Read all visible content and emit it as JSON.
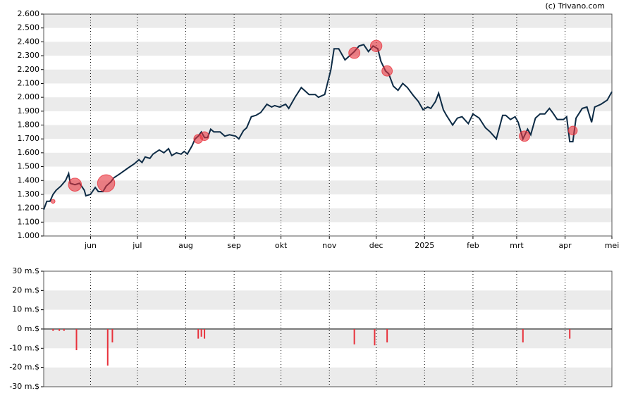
{
  "source": "(c) Trivano.com",
  "chart_data": [
    {
      "type": "line",
      "xlim": [
        1,
        365
      ],
      "xticks": [
        {
          "value": 31,
          "label": "jun"
        },
        {
          "value": 61,
          "label": "jul"
        },
        {
          "value": 92,
          "label": "aug"
        },
        {
          "value": 123,
          "label": "sep"
        },
        {
          "value": 153,
          "label": "okt"
        },
        {
          "value": 184,
          "label": "nov"
        },
        {
          "value": 214,
          "label": "dec"
        },
        {
          "value": 245,
          "label": "2025"
        },
        {
          "value": 276,
          "label": "feb"
        },
        {
          "value": 304,
          "label": "mrt"
        },
        {
          "value": 335,
          "label": "apr"
        },
        {
          "value": 365,
          "label": "mei"
        }
      ],
      "ylim": [
        1,
        2.6
      ],
      "yticks": [
        {
          "value": 1,
          "label": "1.000"
        },
        {
          "value": 1.1,
          "label": "1.100"
        },
        {
          "value": 1.2,
          "label": "1.200"
        },
        {
          "value": 1.3,
          "label": "1.300"
        },
        {
          "value": 1.4,
          "label": "1.400"
        },
        {
          "value": 1.5,
          "label": "1.500"
        },
        {
          "value": 1.6,
          "label": "1.600"
        },
        {
          "value": 1.7,
          "label": "1.700"
        },
        {
          "value": 1.8,
          "label": "1.800"
        },
        {
          "value": 1.9,
          "label": "1.900"
        },
        {
          "value": 2,
          "label": "2.000"
        },
        {
          "value": 2.1,
          "label": "2.100"
        },
        {
          "value": 2.2,
          "label": "2.200"
        },
        {
          "value": 2.3,
          "label": "2.300"
        },
        {
          "value": 2.4,
          "label": "2.400"
        },
        {
          "value": 2.5,
          "label": "2.500"
        },
        {
          "value": 2.6,
          "label": "2.600"
        }
      ],
      "grid": true,
      "series": [
        {
          "color": "#0d2b45",
          "x": [
            1,
            3,
            5,
            7,
            9,
            12,
            15,
            17,
            18,
            21,
            24,
            27,
            28,
            31,
            34,
            36,
            39,
            41,
            44,
            46,
            50,
            55,
            59,
            62,
            64,
            66,
            69,
            71,
            75,
            78,
            81,
            83,
            86,
            89,
            91,
            93,
            96,
            98,
            100,
            102,
            104,
            106,
            108,
            110,
            114,
            117,
            120,
            124,
            126,
            129,
            131,
            134,
            137,
            140,
            144,
            147,
            149,
            152,
            156,
            158,
            162,
            166,
            168,
            171,
            175,
            177,
            181,
            185,
            187,
            190,
            194,
            197,
            200,
            203,
            206,
            209,
            212,
            215,
            217,
            220,
            222,
            225,
            228,
            231,
            234,
            238,
            241,
            244,
            247,
            249,
            252,
            254,
            257,
            259,
            263,
            266,
            269,
            273,
            276,
            280,
            284,
            287,
            291,
            295,
            297,
            300,
            303,
            305,
            308,
            311,
            313,
            316,
            319,
            322,
            325,
            327,
            330,
            334,
            336,
            338,
            340,
            342,
            346,
            349,
            352,
            354,
            358,
            362,
            365
          ],
          "values": [
            1.19,
            1.25,
            1.25,
            1.3,
            1.33,
            1.36,
            1.4,
            1.45,
            1.38,
            1.37,
            1.38,
            1.33,
            1.29,
            1.3,
            1.35,
            1.32,
            1.32,
            1.36,
            1.39,
            1.42,
            1.45,
            1.49,
            1.52,
            1.55,
            1.53,
            1.57,
            1.56,
            1.59,
            1.62,
            1.6,
            1.63,
            1.58,
            1.6,
            1.59,
            1.61,
            1.59,
            1.65,
            1.7,
            1.72,
            1.75,
            1.71,
            1.71,
            1.77,
            1.75,
            1.75,
            1.72,
            1.73,
            1.72,
            1.7,
            1.76,
            1.78,
            1.86,
            1.87,
            1.89,
            1.95,
            1.93,
            1.94,
            1.93,
            1.95,
            1.92,
            2.0,
            2.07,
            2.05,
            2.02,
            2.02,
            2.0,
            2.02,
            2.2,
            2.35,
            2.35,
            2.27,
            2.3,
            2.33,
            2.37,
            2.38,
            2.33,
            2.37,
            2.35,
            2.26,
            2.19,
            2.17,
            2.08,
            2.05,
            2.1,
            2.07,
            2.01,
            1.97,
            1.91,
            1.93,
            1.92,
            1.97,
            2.03,
            1.91,
            1.87,
            1.8,
            1.85,
            1.86,
            1.81,
            1.88,
            1.85,
            1.78,
            1.75,
            1.7,
            1.87,
            1.87,
            1.84,
            1.86,
            1.82,
            1.7,
            1.77,
            1.73,
            1.85,
            1.88,
            1.88,
            1.92,
            1.89,
            1.84,
            1.84,
            1.86,
            1.68,
            1.68,
            1.85,
            1.92,
            1.93,
            1.82,
            1.93,
            1.95,
            1.98,
            2.04
          ]
        }
      ],
      "bubbles": {
        "color": "#e8323c",
        "x": [
          7,
          21,
          41,
          100,
          104,
          200,
          214,
          221,
          309,
          340
        ],
        "values": [
          1.25,
          1.37,
          1.38,
          1.7,
          1.72,
          2.32,
          2.37,
          2.19,
          1.72,
          1.76
        ],
        "sizes": [
          1,
          11,
          19,
          5,
          5,
          8,
          8.5,
          7,
          7,
          5
        ]
      }
    },
    {
      "type": "bar",
      "xlim": [
        1,
        365
      ],
      "ylim": [
        -30,
        30
      ],
      "yticks": [
        {
          "value": -30,
          "label": "-30 m.$"
        },
        {
          "value": -20,
          "label": "-20 m.$"
        },
        {
          "value": -10,
          "label": "-10 m.$"
        },
        {
          "value": 0,
          "label": "0 m.$"
        },
        {
          "value": 10,
          "label": "10 m.$"
        },
        {
          "value": 20,
          "label": "20 m.$"
        },
        {
          "value": 30,
          "label": "30 m.$"
        }
      ],
      "grid": true,
      "color": "#e8323c",
      "x": [
        7,
        11,
        14,
        22,
        42,
        45,
        100,
        102,
        104,
        200,
        213,
        221,
        308,
        338
      ],
      "values": [
        -1,
        -1,
        -1,
        -11,
        -19,
        -7,
        -5,
        -4,
        -5,
        -8,
        -8.5,
        -7,
        -7,
        -5
      ]
    }
  ]
}
